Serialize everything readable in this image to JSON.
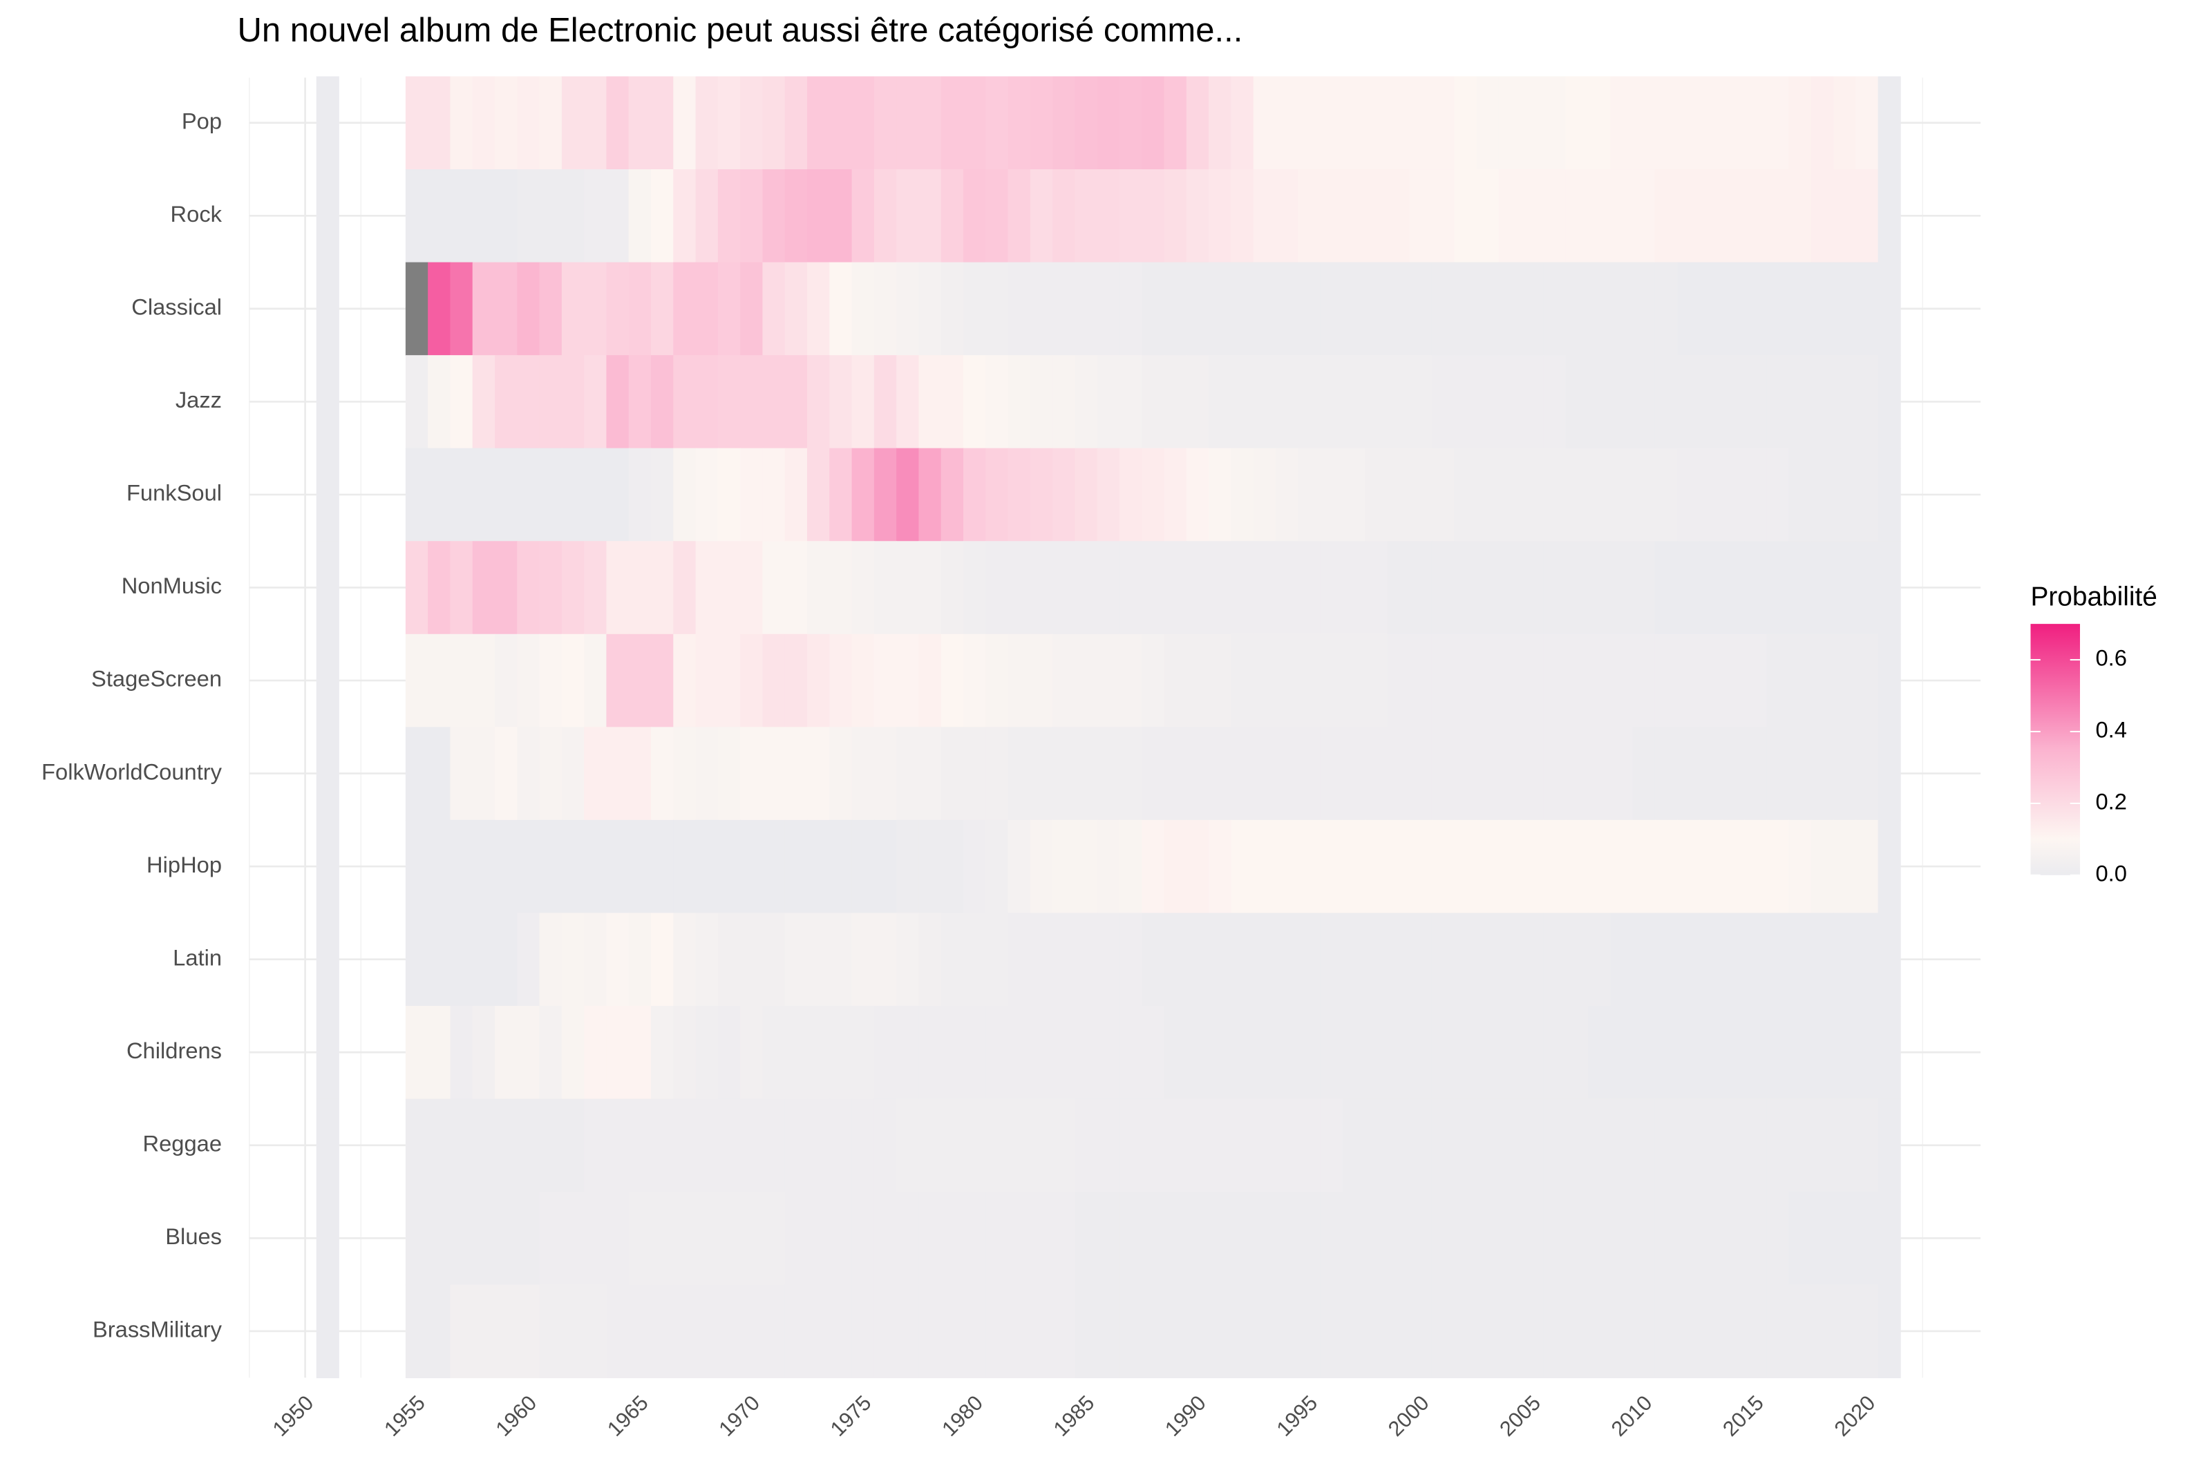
{
  "chart_data": {
    "type": "heatmap",
    "title": "Un nouvel album de Electronic  peut aussi être catégorisé comme...",
    "legend_title": "Probabilité",
    "x": [
      1951,
      1955,
      1956,
      1957,
      1958,
      1959,
      1960,
      1961,
      1962,
      1963,
      1964,
      1965,
      1966,
      1967,
      1968,
      1969,
      1970,
      1971,
      1972,
      1973,
      1974,
      1975,
      1976,
      1977,
      1978,
      1979,
      1980,
      1981,
      1982,
      1983,
      1984,
      1985,
      1986,
      1987,
      1988,
      1989,
      1990,
      1991,
      1992,
      1993,
      1994,
      1995,
      1996,
      1997,
      1998,
      1999,
      2000,
      2001,
      2002,
      2003,
      2004,
      2005,
      2006,
      2007,
      2008,
      2009,
      2010,
      2011,
      2012,
      2013,
      2014,
      2015,
      2016,
      2017,
      2018,
      2019,
      2020,
      2021
    ],
    "xlim": [
      1947.5,
      2025.1
    ],
    "xticks": [
      1950,
      1955,
      1960,
      1965,
      1970,
      1975,
      1980,
      1985,
      1990,
      1995,
      2000,
      2005,
      2010,
      2015,
      2020
    ],
    "zlim": [
      0,
      0.7
    ],
    "zticks": [
      {
        "value": 0,
        "label": "0.0"
      },
      0.2,
      0.4,
      0.6
    ],
    "colorscale": [
      {
        "value": 0,
        "color": "#ebebef"
      },
      {
        "value": 0.1,
        "color": "#fdf6f2"
      },
      {
        "value": 0.35,
        "color": "#fbb3cf"
      },
      {
        "value": 0.7,
        "color": "#f01f80"
      }
    ],
    "na_color": "#7f7f7f",
    "grid": true,
    "legend": "right",
    "series": [
      {
        "name": "Pop",
        "values": [
          0,
          0.17,
          0.17,
          0.12,
          0.13,
          0.12,
          0.13,
          0.12,
          0.18,
          0.18,
          0.24,
          0.2,
          0.2,
          0.11,
          0.17,
          0.16,
          0.18,
          0.19,
          0.22,
          0.27,
          0.27,
          0.27,
          0.25,
          0.25,
          0.25,
          0.27,
          0.27,
          0.26,
          0.27,
          0.28,
          0.29,
          0.3,
          0.31,
          0.3,
          0.31,
          0.28,
          0.22,
          0.18,
          0.16,
          0.11,
          0.11,
          0.11,
          0.11,
          0.11,
          0.11,
          0.11,
          0.11,
          0.11,
          0.1,
          0.09,
          0.09,
          0.09,
          0.09,
          0.1,
          0.1,
          0.11,
          0.11,
          0.11,
          0.11,
          0.11,
          0.11,
          0.11,
          0.11,
          0.12,
          0.13,
          0.12,
          0.11,
          0
        ]
      },
      {
        "name": "Rock",
        "values": [
          0,
          0,
          0,
          0,
          0,
          0,
          0.01,
          0.01,
          0.01,
          0.02,
          0.02,
          0.08,
          0.1,
          0.16,
          0.2,
          0.25,
          0.26,
          0.3,
          0.32,
          0.33,
          0.33,
          0.26,
          0.22,
          0.2,
          0.2,
          0.24,
          0.28,
          0.27,
          0.24,
          0.2,
          0.22,
          0.21,
          0.21,
          0.2,
          0.2,
          0.19,
          0.17,
          0.16,
          0.15,
          0.13,
          0.13,
          0.12,
          0.12,
          0.12,
          0.12,
          0.12,
          0.11,
          0.11,
          0.1,
          0.1,
          0.11,
          0.11,
          0.11,
          0.11,
          0.11,
          0.11,
          0.11,
          0.12,
          0.12,
          0.12,
          0.12,
          0.12,
          0.12,
          0.12,
          0.13,
          0.13,
          0.13,
          0
        ]
      },
      {
        "name": "Classical",
        "values": [
          0,
          0.8,
          0.55,
          0.5,
          0.3,
          0.3,
          0.34,
          0.3,
          0.22,
          0.22,
          0.24,
          0.25,
          0.22,
          0.28,
          0.28,
          0.26,
          0.29,
          0.2,
          0.18,
          0.15,
          0.1,
          0.08,
          0.07,
          0.06,
          0.05,
          0.04,
          0.03,
          0.03,
          0.02,
          0.02,
          0.02,
          0.02,
          0.02,
          0.02,
          0.01,
          0.01,
          0.01,
          0.01,
          0.01,
          0.01,
          0.01,
          0.01,
          0.01,
          0.01,
          0.01,
          0.01,
          0.01,
          0.01,
          0.01,
          0.01,
          0.01,
          0.01,
          0.01,
          0.01,
          0.01,
          0.01,
          0.01,
          0.01,
          0,
          0,
          0,
          0,
          0,
          0,
          0,
          0,
          0,
          0
        ]
      },
      {
        "name": "Jazz",
        "values": [
          0,
          0.03,
          0.08,
          0.1,
          0.18,
          0.22,
          0.22,
          0.22,
          0.22,
          0.2,
          0.32,
          0.27,
          0.3,
          0.25,
          0.25,
          0.24,
          0.24,
          0.24,
          0.24,
          0.2,
          0.17,
          0.15,
          0.2,
          0.16,
          0.12,
          0.12,
          0.1,
          0.09,
          0.08,
          0.07,
          0.07,
          0.06,
          0.05,
          0.05,
          0.04,
          0.04,
          0.04,
          0.03,
          0.03,
          0.03,
          0.03,
          0.03,
          0.03,
          0.03,
          0.03,
          0.03,
          0.03,
          0.02,
          0.02,
          0.02,
          0.02,
          0.02,
          0.02,
          0.01,
          0.01,
          0.01,
          0.01,
          0.01,
          0.01,
          0.01,
          0.01,
          0.01,
          0.01,
          0.01,
          0.01,
          0.01,
          0.01,
          0
        ]
      },
      {
        "name": "FunkSoul",
        "values": [
          0,
          0,
          0,
          0,
          0,
          0,
          0,
          0,
          0,
          0,
          0,
          0.02,
          0.03,
          0.08,
          0.09,
          0.1,
          0.11,
          0.11,
          0.13,
          0.2,
          0.26,
          0.35,
          0.4,
          0.44,
          0.38,
          0.32,
          0.26,
          0.24,
          0.23,
          0.22,
          0.21,
          0.19,
          0.17,
          0.15,
          0.14,
          0.13,
          0.11,
          0.09,
          0.08,
          0.07,
          0.06,
          0.05,
          0.05,
          0.05,
          0.04,
          0.04,
          0.04,
          0.04,
          0.03,
          0.03,
          0.03,
          0.03,
          0.03,
          0.03,
          0.03,
          0.03,
          0.03,
          0.03,
          0.02,
          0.02,
          0.02,
          0.02,
          0.02,
          0.01,
          0.01,
          0.01,
          0.01,
          0
        ]
      },
      {
        "name": "NonMusic",
        "values": [
          0,
          0.22,
          0.28,
          0.24,
          0.3,
          0.3,
          0.25,
          0.24,
          0.22,
          0.2,
          0.14,
          0.14,
          0.14,
          0.18,
          0.13,
          0.13,
          0.13,
          0.09,
          0.09,
          0.07,
          0.07,
          0.06,
          0.05,
          0.05,
          0.05,
          0.04,
          0.03,
          0.02,
          0.02,
          0.02,
          0.02,
          0.02,
          0.02,
          0.02,
          0.02,
          0.02,
          0.02,
          0.02,
          0.02,
          0.02,
          0.02,
          0.02,
          0.02,
          0.02,
          0.02,
          0.01,
          0.01,
          0.01,
          0.01,
          0.01,
          0.01,
          0.01,
          0.01,
          0.01,
          0.01,
          0.01,
          0.01,
          0,
          0,
          0,
          0,
          0,
          0,
          0,
          0,
          0,
          0,
          0
        ]
      },
      {
        "name": "StageScreen",
        "values": [
          0,
          0.08,
          0.08,
          0.08,
          0.08,
          0.06,
          0.07,
          0.09,
          0.1,
          0.08,
          0.25,
          0.25,
          0.25,
          0.12,
          0.13,
          0.13,
          0.15,
          0.17,
          0.17,
          0.15,
          0.13,
          0.12,
          0.11,
          0.11,
          0.12,
          0.1,
          0.09,
          0.08,
          0.07,
          0.07,
          0.06,
          0.06,
          0.06,
          0.06,
          0.05,
          0.04,
          0.04,
          0.04,
          0.03,
          0.03,
          0.03,
          0.03,
          0.03,
          0.03,
          0.03,
          0.02,
          0.02,
          0.02,
          0.02,
          0.02,
          0.02,
          0.02,
          0.02,
          0.02,
          0.02,
          0.02,
          0.02,
          0.02,
          0.02,
          0.02,
          0.02,
          0.02,
          0.01,
          0.01,
          0.01,
          0.01,
          0.01,
          0
        ]
      },
      {
        "name": "FolkWorldCountry",
        "values": [
          0,
          0,
          0,
          0.07,
          0.07,
          0.09,
          0.06,
          0.07,
          0.06,
          0.13,
          0.13,
          0.13,
          0.09,
          0.08,
          0.07,
          0.08,
          0.09,
          0.09,
          0.09,
          0.09,
          0.07,
          0.06,
          0.06,
          0.05,
          0.05,
          0.04,
          0.04,
          0.04,
          0.03,
          0.03,
          0.03,
          0.03,
          0.03,
          0.03,
          0.02,
          0.02,
          0.02,
          0.02,
          0.02,
          0.02,
          0.02,
          0.02,
          0.02,
          0.02,
          0.02,
          0.02,
          0.02,
          0.02,
          0.02,
          0.02,
          0.02,
          0.02,
          0.02,
          0.02,
          0.02,
          0.02,
          0.01,
          0.01,
          0.01,
          0.01,
          0.01,
          0.01,
          0.01,
          0.01,
          0.01,
          0.01,
          0.01,
          0
        ]
      },
      {
        "name": "HipHop",
        "values": [
          0,
          0,
          0,
          0,
          0,
          0,
          0,
          0,
          0,
          0,
          0,
          0,
          0,
          0,
          0,
          0,
          0,
          0,
          0,
          0,
          0,
          0,
          0,
          0.01,
          0.01,
          0.01,
          0.02,
          0.03,
          0.05,
          0.07,
          0.08,
          0.08,
          0.07,
          0.08,
          0.11,
          0.12,
          0.12,
          0.11,
          0.1,
          0.1,
          0.1,
          0.1,
          0.1,
          0.1,
          0.1,
          0.1,
          0.1,
          0.1,
          0.1,
          0.1,
          0.1,
          0.1,
          0.1,
          0.1,
          0.1,
          0.1,
          0.1,
          0.1,
          0.1,
          0.1,
          0.1,
          0.1,
          0.1,
          0.09,
          0.08,
          0.08,
          0.08,
          0
        ]
      },
      {
        "name": "Latin",
        "values": [
          0,
          0,
          0,
          0,
          0,
          0,
          0.02,
          0.07,
          0.08,
          0.07,
          0.09,
          0.08,
          0.1,
          0.06,
          0.05,
          0.04,
          0.04,
          0.04,
          0.05,
          0.05,
          0.05,
          0.06,
          0.06,
          0.05,
          0.04,
          0.03,
          0.03,
          0.03,
          0.02,
          0.02,
          0.02,
          0.02,
          0.02,
          0.02,
          0.01,
          0.01,
          0.01,
          0.01,
          0.01,
          0.01,
          0.01,
          0.01,
          0.01,
          0.01,
          0.01,
          0.01,
          0.01,
          0.01,
          0.01,
          0.01,
          0.01,
          0.01,
          0.01,
          0.01,
          0.01,
          0,
          0,
          0,
          0,
          0,
          0,
          0,
          0,
          0,
          0,
          0,
          0,
          0
        ]
      },
      {
        "name": "Childrens",
        "values": [
          0,
          0.08,
          0.08,
          0.02,
          0.04,
          0.07,
          0.07,
          0.05,
          0.08,
          0.11,
          0.11,
          0.11,
          0.05,
          0.04,
          0.03,
          0.02,
          0.04,
          0.03,
          0.03,
          0.03,
          0.03,
          0.03,
          0.02,
          0.02,
          0.02,
          0.02,
          0.02,
          0.02,
          0.02,
          0.02,
          0.02,
          0.02,
          0.02,
          0.02,
          0.02,
          0.01,
          0.01,
          0.01,
          0.01,
          0.01,
          0.01,
          0.01,
          0.01,
          0.01,
          0.01,
          0.01,
          0.01,
          0.01,
          0.01,
          0.01,
          0.01,
          0.01,
          0.01,
          0.01,
          0,
          0,
          0,
          0,
          0,
          0,
          0,
          0,
          0,
          0,
          0,
          0,
          0,
          0
        ]
      },
      {
        "name": "Reggae",
        "values": [
          0,
          0.01,
          0.01,
          0.01,
          0.01,
          0.01,
          0.01,
          0.01,
          0.01,
          0.02,
          0.02,
          0.02,
          0.02,
          0.02,
          0.02,
          0.02,
          0.02,
          0.02,
          0.02,
          0.02,
          0.02,
          0.02,
          0.02,
          0.03,
          0.03,
          0.03,
          0.03,
          0.03,
          0.03,
          0.03,
          0.03,
          0.02,
          0.02,
          0.02,
          0.02,
          0.02,
          0.02,
          0.02,
          0.02,
          0.02,
          0.02,
          0.02,
          0.02,
          0.01,
          0.01,
          0.01,
          0.01,
          0.01,
          0.01,
          0.01,
          0.01,
          0.01,
          0.01,
          0.01,
          0.01,
          0.01,
          0.01,
          0.01,
          0.01,
          0.01,
          0.01,
          0.01,
          0.01,
          0.01,
          0.01,
          0.01,
          0.01,
          0
        ]
      },
      {
        "name": "Blues",
        "values": [
          0,
          0.01,
          0.01,
          0.01,
          0.01,
          0.01,
          0.01,
          0.02,
          0.02,
          0.02,
          0.02,
          0.03,
          0.03,
          0.03,
          0.03,
          0.03,
          0.03,
          0.03,
          0.02,
          0.02,
          0.02,
          0.02,
          0.02,
          0.02,
          0.02,
          0.02,
          0.02,
          0.02,
          0.02,
          0.02,
          0.02,
          0.01,
          0.01,
          0.01,
          0.01,
          0.01,
          0.01,
          0.01,
          0.01,
          0.01,
          0.01,
          0.01,
          0.01,
          0.01,
          0.01,
          0.01,
          0.01,
          0.01,
          0.01,
          0.01,
          0.01,
          0.01,
          0.01,
          0.01,
          0.01,
          0.01,
          0.01,
          0.01,
          0.01,
          0.01,
          0.01,
          0.01,
          0.01,
          0,
          0,
          0,
          0,
          0
        ]
      },
      {
        "name": "BrassMilitary",
        "values": [
          0,
          0.01,
          0.01,
          0.04,
          0.04,
          0.04,
          0.04,
          0.03,
          0.03,
          0.03,
          0.02,
          0.02,
          0.02,
          0.02,
          0.02,
          0.02,
          0.02,
          0.02,
          0.02,
          0.02,
          0.02,
          0.02,
          0.02,
          0.02,
          0.02,
          0.02,
          0.02,
          0.02,
          0.02,
          0.02,
          0.02,
          0.01,
          0.01,
          0.01,
          0.01,
          0.01,
          0.01,
          0.01,
          0.01,
          0.01,
          0.01,
          0.01,
          0.01,
          0.01,
          0.01,
          0.01,
          0.01,
          0.01,
          0.01,
          0.01,
          0.01,
          0.01,
          0.01,
          0.01,
          0.01,
          0.01,
          0.01,
          0.01,
          0.01,
          0.01,
          0.01,
          0.01,
          0.01,
          0.01,
          0.01,
          0.01,
          0.01,
          0
        ]
      }
    ]
  }
}
